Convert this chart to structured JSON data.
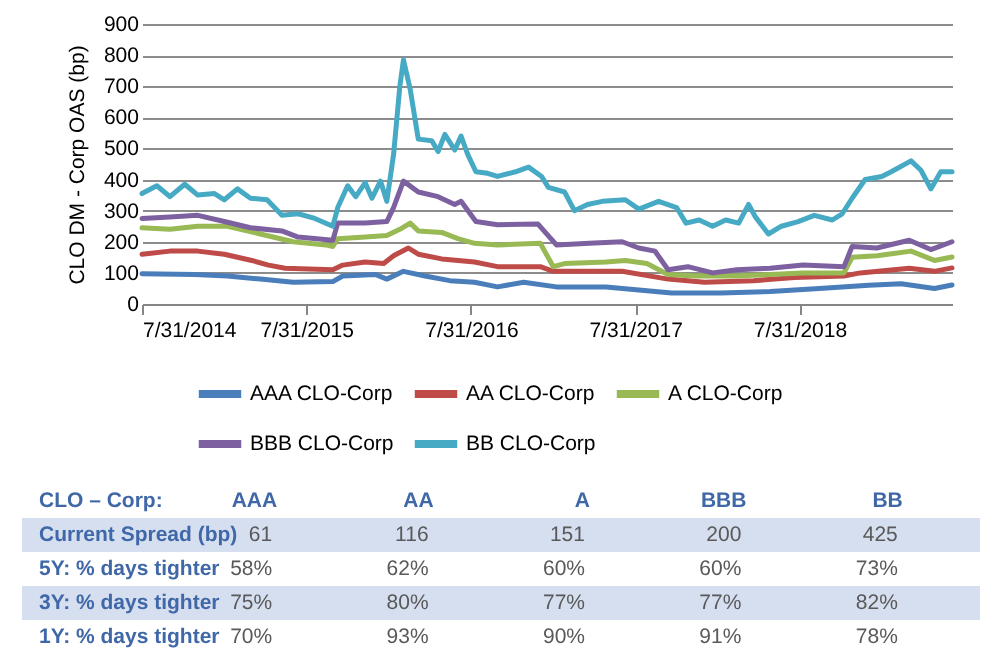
{
  "chart_data": [
    {
      "type": "line",
      "ylabel": "CLO DM - Corp OAS (bp)",
      "grid": "y",
      "legend": "bottom",
      "xlim": [
        "2014-07-31",
        "2019-07-05"
      ],
      "xticks": [
        {
          "value": "2014-07-31",
          "label": "7/31/2014"
        },
        {
          "value": "2015-07-31",
          "label": "7/31/2015"
        },
        {
          "value": "2016-07-31",
          "label": "7/31/2016"
        },
        {
          "value": "2017-07-31",
          "label": "7/31/2017"
        },
        {
          "value": "2018-07-31",
          "label": "7/31/2018"
        }
      ],
      "ylim": [
        0,
        900
      ],
      "yticks": [
        0,
        100,
        200,
        300,
        400,
        500,
        600,
        700,
        800,
        900
      ],
      "series": [
        {
          "name": "AAA CLO-Corp",
          "color": "#4a7ebb",
          "x": [
            "2014-07-31",
            "2014-11-25",
            "2015-02-06",
            "2015-04-20",
            "2015-07-02",
            "2015-09-28",
            "2015-10-20",
            "2016-01-01",
            "2016-01-26",
            "2016-03-03",
            "2016-04-20",
            "2016-06-14",
            "2016-08-08",
            "2016-09-28",
            "2016-11-25",
            "2017-02-06",
            "2017-05-27",
            "2017-08-08",
            "2017-10-20",
            "2018-02-06",
            "2018-05-27",
            "2018-09-13",
            "2019-01-01",
            "2019-03-14",
            "2019-05-27",
            "2019-07-05"
          ],
          "values": [
            97,
            95,
            90,
            80,
            70,
            72,
            90,
            95,
            80,
            105,
            90,
            75,
            70,
            55,
            70,
            55,
            55,
            45,
            35,
            35,
            40,
            50,
            60,
            65,
            50,
            61
          ]
        },
        {
          "name": "AA CLO-Corp",
          "color": "#be4b48",
          "x": [
            "2014-07-31",
            "2014-10-01",
            "2014-12-02",
            "2015-01-30",
            "2015-04-01",
            "2015-05-08",
            "2015-06-14",
            "2015-09-28",
            "2015-10-20",
            "2015-12-09",
            "2016-01-19",
            "2016-02-10",
            "2016-03-14",
            "2016-04-05",
            "2016-05-27",
            "2016-08-08",
            "2016-09-28",
            "2017-01-01",
            "2017-01-30",
            "2017-07-02",
            "2017-10-12",
            "2018-01-01",
            "2018-04-20",
            "2018-07-20",
            "2018-11-07",
            "2018-12-13",
            "2019-04-01",
            "2019-05-27",
            "2019-07-05"
          ],
          "values": [
            160,
            170,
            170,
            160,
            140,
            125,
            115,
            110,
            125,
            135,
            130,
            155,
            180,
            160,
            145,
            135,
            120,
            120,
            105,
            105,
            80,
            70,
            75,
            85,
            90,
            100,
            115,
            105,
            116
          ]
        },
        {
          "name": "A CLO-Corp",
          "color": "#98b954",
          "x": [
            "2014-07-31",
            "2014-10-01",
            "2014-12-02",
            "2015-02-06",
            "2015-04-20",
            "2015-07-02",
            "2015-09-13",
            "2015-09-28",
            "2015-10-09",
            "2015-12-09",
            "2016-01-26",
            "2016-02-24",
            "2016-03-18",
            "2016-04-05",
            "2016-05-27",
            "2016-07-02",
            "2016-08-08",
            "2016-09-28",
            "2017-01-01",
            "2017-01-30",
            "2017-02-24",
            "2017-05-27",
            "2017-07-09",
            "2017-08-26",
            "2017-10-12",
            "2017-12-13",
            "2018-03-14",
            "2018-05-27",
            "2018-08-08",
            "2018-11-07",
            "2018-11-25",
            "2019-01-19",
            "2019-04-05",
            "2019-05-27",
            "2019-07-05"
          ],
          "values": [
            245,
            240,
            250,
            250,
            225,
            200,
            190,
            185,
            210,
            215,
            220,
            240,
            260,
            235,
            230,
            210,
            195,
            190,
            195,
            120,
            130,
            135,
            140,
            130,
            95,
            90,
            90,
            95,
            100,
            100,
            150,
            155,
            170,
            140,
            151
          ]
        },
        {
          "name": "BBB CLO-Corp",
          "color": "#7d60a0",
          "x": [
            "2014-07-31",
            "2014-10-01",
            "2014-12-02",
            "2015-01-30",
            "2015-03-29",
            "2015-06-07",
            "2015-07-13",
            "2015-09-28",
            "2015-10-09",
            "2015-12-09",
            "2016-01-26",
            "2016-02-10",
            "2016-03-03",
            "2016-04-05",
            "2016-05-19",
            "2016-06-25",
            "2016-07-09",
            "2016-08-11",
            "2016-09-28",
            "2016-12-27",
            "2017-02-06",
            "2017-04-20",
            "2017-07-02",
            "2017-08-08",
            "2017-09-13",
            "2017-10-12",
            "2017-11-25",
            "2018-01-19",
            "2018-03-14",
            "2018-05-27",
            "2018-08-08",
            "2018-11-07",
            "2018-11-25",
            "2019-01-19",
            "2019-04-01",
            "2019-05-19",
            "2019-07-05"
          ],
          "values": [
            275,
            280,
            285,
            265,
            245,
            235,
            215,
            205,
            260,
            260,
            265,
            310,
            395,
            360,
            345,
            320,
            330,
            265,
            255,
            257,
            190,
            195,
            200,
            180,
            170,
            110,
            120,
            100,
            110,
            115,
            125,
            120,
            185,
            180,
            205,
            175,
            200
          ]
        },
        {
          "name": "BB CLO-Corp",
          "color": "#46aac5",
          "x": [
            "2014-07-31",
            "2014-09-02",
            "2014-10-01",
            "2014-11-03",
            "2014-12-02",
            "2015-01-08",
            "2015-01-30",
            "2015-02-28",
            "2015-03-29",
            "2015-05-05",
            "2015-06-07",
            "2015-07-13",
            "2015-08-19",
            "2015-09-28",
            "2015-10-09",
            "2015-10-31",
            "2015-11-18",
            "2015-12-09",
            "2015-12-24",
            "2016-01-12",
            "2016-01-26",
            "2016-02-10",
            "2016-02-24",
            "2016-03-03",
            "2016-03-18",
            "2016-04-05",
            "2016-05-05",
            "2016-05-19",
            "2016-06-03",
            "2016-06-25",
            "2016-07-09",
            "2016-07-24",
            "2016-08-11",
            "2016-09-06",
            "2016-09-28",
            "2016-11-07",
            "2016-12-06",
            "2017-01-04",
            "2017-01-19",
            "2017-02-24",
            "2017-03-18",
            "2017-04-16",
            "2017-05-19",
            "2017-07-09",
            "2017-08-08",
            "2017-09-21",
            "2017-10-31",
            "2017-11-21",
            "2017-12-20",
            "2018-01-19",
            "2018-02-17",
            "2018-03-18",
            "2018-04-09",
            "2018-04-24",
            "2018-05-23",
            "2018-06-21",
            "2018-07-28",
            "2018-09-02",
            "2018-10-12",
            "2018-11-03",
            "2018-11-25",
            "2018-12-24",
            "2019-01-30",
            "2019-02-20",
            "2019-04-05",
            "2019-04-27",
            "2019-05-19",
            "2019-06-10",
            "2019-07-05"
          ],
          "values": [
            355,
            380,
            345,
            385,
            350,
            355,
            335,
            370,
            340,
            335,
            285,
            290,
            275,
            250,
            310,
            380,
            345,
            390,
            340,
            395,
            330,
            480,
            700,
            785,
            690,
            530,
            525,
            490,
            545,
            495,
            540,
            480,
            425,
            420,
            410,
            425,
            440,
            410,
            375,
            360,
            300,
            320,
            330,
            335,
            305,
            330,
            310,
            260,
            270,
            250,
            270,
            260,
            320,
            280,
            225,
            250,
            265,
            285,
            270,
            290,
            340,
            400,
            410,
            425,
            460,
            430,
            370,
            425,
            425
          ]
        }
      ]
    },
    {
      "type": "other",
      "ylabel": "CLO – Corp:",
      "categories": [
        "AAA",
        "AA",
        "A",
        "BBB",
        "BB"
      ],
      "y_categories": [
        "Current Spread (bp)",
        "5Y: % days tighter",
        "3Y: % days tighter",
        "1Y: % days tighter"
      ],
      "cell_labels": [
        [
          "61",
          "116",
          "151",
          "200",
          "425"
        ],
        [
          "58%",
          "62%",
          "60%",
          "60%",
          "73%"
        ],
        [
          "75%",
          "80%",
          "77%",
          "77%",
          "82%"
        ],
        [
          "70%",
          "93%",
          "90%",
          "91%",
          "78%"
        ]
      ]
    }
  ]
}
